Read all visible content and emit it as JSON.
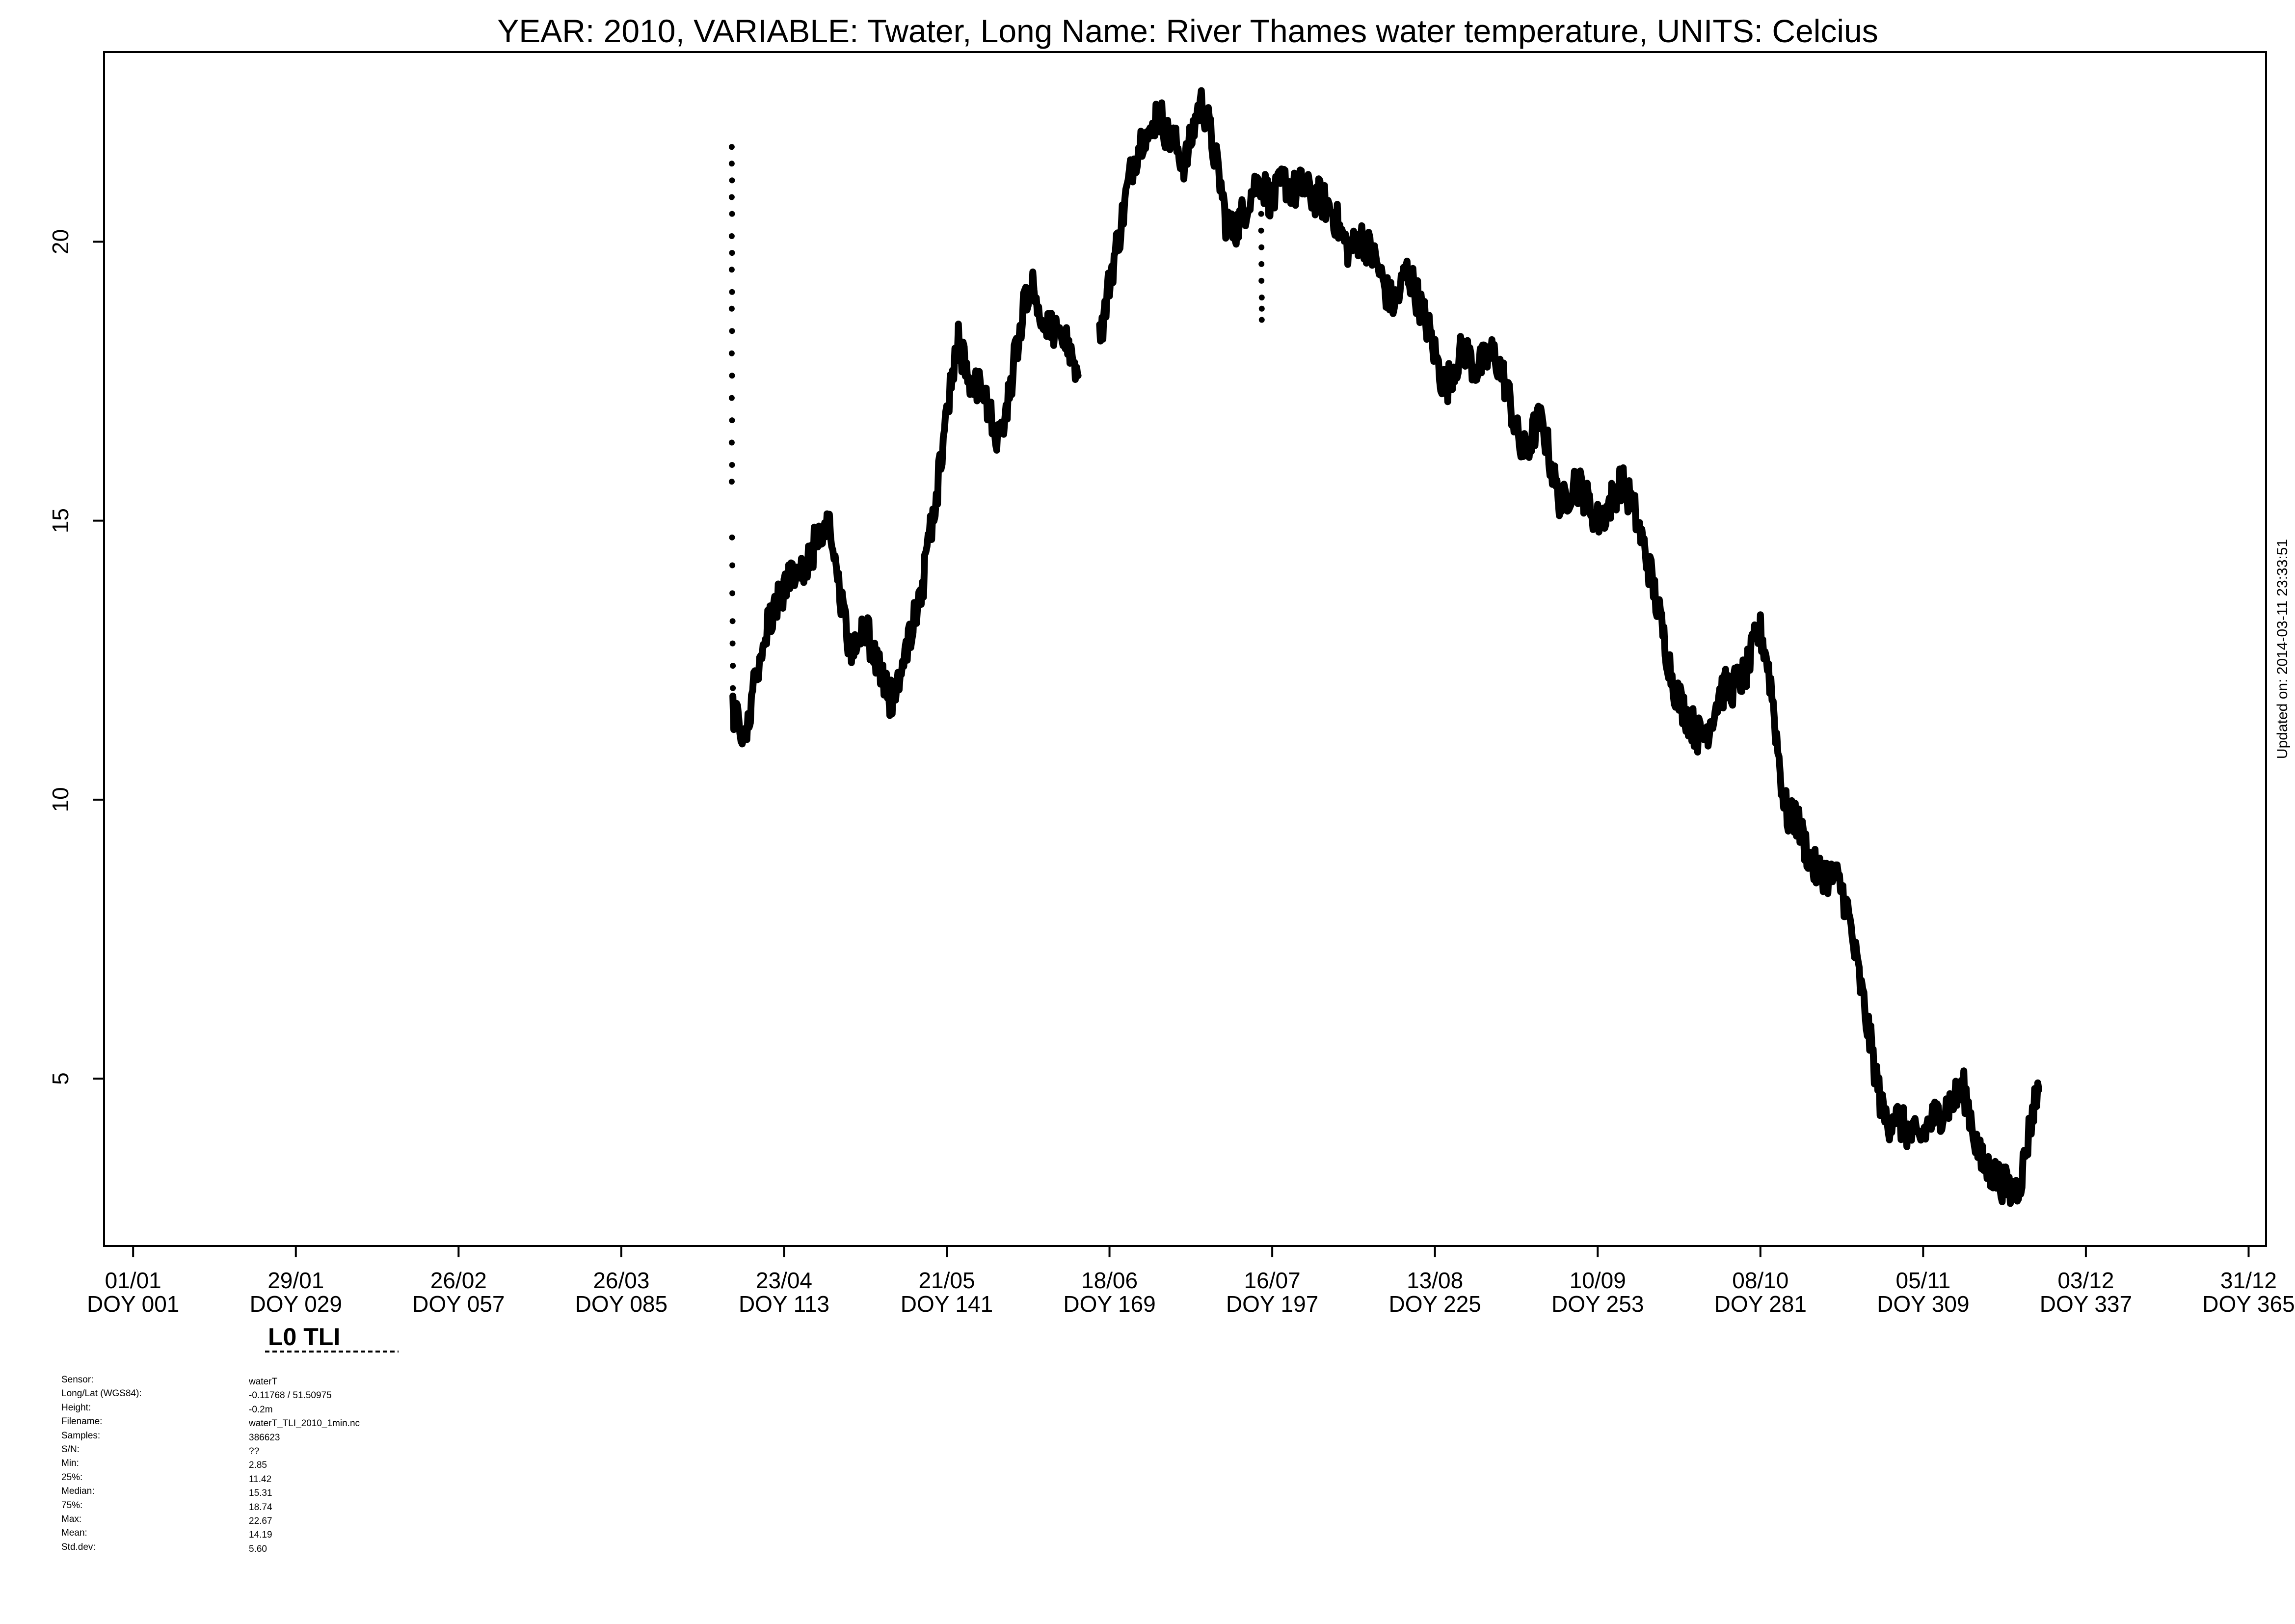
{
  "chart_data": {
    "type": "line",
    "title": "YEAR: 2010, VARIABLE: Twater, Long Name: River  Thames  water  temperature, UNITS: Celcius",
    "xlabel": "",
    "ylabel": "",
    "xlim": [
      -4,
      368
    ],
    "ylim": [
      2,
      23.4
    ],
    "x_ticks": [
      {
        "doy": 1,
        "date": "01/01",
        "label": "DOY 001"
      },
      {
        "doy": 29,
        "date": "29/01",
        "label": "DOY 029"
      },
      {
        "doy": 57,
        "date": "26/02",
        "label": "DOY 057"
      },
      {
        "doy": 85,
        "date": "26/03",
        "label": "DOY 085"
      },
      {
        "doy": 113,
        "date": "23/04",
        "label": "DOY 113"
      },
      {
        "doy": 141,
        "date": "21/05",
        "label": "DOY 141"
      },
      {
        "doy": 169,
        "date": "18/06",
        "label": "DOY 169"
      },
      {
        "doy": 197,
        "date": "16/07",
        "label": "DOY 197"
      },
      {
        "doy": 225,
        "date": "13/08",
        "label": "DOY 225"
      },
      {
        "doy": 253,
        "date": "10/09",
        "label": "DOY 253"
      },
      {
        "doy": 281,
        "date": "08/10",
        "label": "DOY 281"
      },
      {
        "doy": 309,
        "date": "05/11",
        "label": "DOY 309"
      },
      {
        "doy": 337,
        "date": "03/12",
        "label": "DOY 337"
      },
      {
        "doy": 365,
        "date": "31/12",
        "label": "DOY 365"
      }
    ],
    "y_ticks": [
      5,
      10,
      15,
      20
    ],
    "grid": false,
    "legend": "none",
    "color": "#000000",
    "series": [
      {
        "segments": [
          [
            [
              104.2,
              11.6
            ],
            [
              105,
              11.5
            ],
            [
              106,
              11.3
            ],
            [
              107,
              11.5
            ],
            [
              108,
              12.2
            ],
            [
              109,
              12.7
            ],
            [
              110,
              13.1
            ],
            [
              111,
              13.4
            ],
            [
              112,
              13.6
            ],
            [
              113,
              13.8
            ],
            [
              114,
              13.9
            ],
            [
              115,
              14.0
            ],
            [
              116,
              14.0
            ],
            [
              117,
              14.2
            ],
            [
              118,
              14.5
            ],
            [
              119,
              14.8
            ],
            [
              120,
              15.0
            ],
            [
              121,
              14.9
            ],
            [
              122,
              14.3
            ],
            [
              123,
              13.5
            ],
            [
              124,
              12.9
            ],
            [
              125,
              12.6
            ],
            [
              126,
              12.9
            ],
            [
              127,
              13.0
            ],
            [
              128,
              12.8
            ],
            [
              129,
              12.5
            ],
            [
              130,
              12.1
            ],
            [
              131,
              11.8
            ],
            [
              132,
              11.8
            ],
            [
              133,
              12.1
            ],
            [
              134,
              12.6
            ],
            [
              135,
              13.1
            ],
            [
              136,
              13.5
            ],
            [
              137,
              13.9
            ],
            [
              138,
              14.6
            ],
            [
              139,
              15.3
            ],
            [
              140,
              16.1
            ],
            [
              141,
              16.9
            ],
            [
              142,
              17.7
            ],
            [
              143,
              18.3
            ],
            [
              144,
              17.8
            ],
            [
              145,
              17.6
            ],
            [
              146,
              17.5
            ],
            [
              147,
              17.3
            ],
            [
              148,
              17.0
            ],
            [
              149,
              16.7
            ],
            [
              150,
              16.5
            ],
            [
              151,
              16.9
            ],
            [
              152,
              17.4
            ],
            [
              153,
              18.1
            ],
            [
              154,
              18.7
            ],
            [
              155,
              19.2
            ],
            [
              156,
              19.1
            ],
            [
              157,
              18.8
            ],
            [
              158,
              18.7
            ],
            [
              159,
              18.4
            ],
            [
              160,
              18.3
            ],
            [
              161,
              18.2
            ],
            [
              162,
              18.1
            ],
            [
              163,
              17.9
            ],
            [
              163.6,
              17.6
            ]
          ],
          [
            [
              167.3,
              18.4
            ],
            [
              168,
              18.6
            ],
            [
              169,
              19.3
            ],
            [
              170,
              19.8
            ],
            [
              171,
              20.3
            ],
            [
              172,
              20.9
            ],
            [
              173,
              21.4
            ],
            [
              174,
              21.7
            ],
            [
              175,
              22.0
            ],
            [
              176,
              21.8
            ],
            [
              177,
              22.3
            ],
            [
              178,
              22.2
            ],
            [
              179,
              21.9
            ],
            [
              180,
              21.8
            ],
            [
              181,
              21.6
            ],
            [
              182,
              21.4
            ],
            [
              183,
              21.8
            ],
            [
              184,
              22.3
            ],
            [
              185,
              22.5
            ],
            [
              186,
              22.1
            ],
            [
              187,
              21.6
            ],
            [
              188,
              21.1
            ],
            [
              189,
              20.4
            ],
            [
              190,
              20.2
            ],
            [
              191,
              20.3
            ],
            [
              192,
              20.5
            ],
            [
              193,
              20.8
            ],
            [
              194,
              21.0
            ],
            [
              195,
              21.1
            ],
            [
              196,
              20.9
            ],
            [
              197,
              20.7
            ],
            [
              198,
              20.9
            ],
            [
              199,
              21.1
            ],
            [
              200,
              21.0
            ],
            [
              201,
              20.9
            ],
            [
              202,
              21.0
            ],
            [
              203,
              20.9
            ],
            [
              204,
              20.8
            ],
            [
              205,
              20.8
            ],
            [
              206,
              20.7
            ],
            [
              207,
              20.6
            ],
            [
              208,
              20.4
            ],
            [
              209,
              20.1
            ],
            [
              210,
              19.9
            ],
            [
              211,
              19.9
            ],
            [
              212,
              20.1
            ],
            [
              213,
              20.0
            ],
            [
              214,
              19.8
            ],
            [
              215,
              19.6
            ],
            [
              216,
              19.3
            ],
            [
              217,
              19.0
            ],
            [
              218,
              18.9
            ],
            [
              219,
              19.1
            ],
            [
              220,
              19.5
            ],
            [
              221,
              19.3
            ],
            [
              222,
              19.0
            ],
            [
              223,
              18.7
            ],
            [
              224,
              18.4
            ],
            [
              225,
              18.0
            ],
            [
              226,
              17.6
            ],
            [
              227,
              17.4
            ],
            [
              228,
              17.7
            ],
            [
              229,
              17.9
            ],
            [
              230,
              18.1
            ],
            [
              231,
              17.9
            ],
            [
              232,
              17.7
            ],
            [
              233,
              17.8
            ],
            [
              234,
              17.9
            ],
            [
              235,
              18.0
            ],
            [
              236,
              17.8
            ],
            [
              237,
              17.5
            ],
            [
              238,
              17.1
            ],
            [
              239,
              16.6
            ],
            [
              240,
              16.2
            ],
            [
              241,
              16.3
            ],
            [
              242,
              16.6
            ],
            [
              243,
              16.8
            ],
            [
              244,
              16.5
            ],
            [
              245,
              16.0
            ],
            [
              246,
              15.5
            ],
            [
              247,
              15.3
            ],
            [
              248,
              15.5
            ],
            [
              249,
              15.7
            ],
            [
              250,
              15.6
            ],
            [
              251,
              15.4
            ],
            [
              252,
              15.2
            ],
            [
              253,
              15.0
            ],
            [
              254,
              15.1
            ],
            [
              255,
              15.3
            ],
            [
              256,
              15.5
            ],
            [
              257,
              15.7
            ],
            [
              258,
              15.5
            ],
            [
              259,
              15.3
            ],
            [
              260,
              14.9
            ],
            [
              261,
              14.5
            ],
            [
              262,
              14.1
            ],
            [
              263,
              13.6
            ],
            [
              264,
              13.1
            ],
            [
              265,
              12.6
            ],
            [
              266,
              12.1
            ],
            [
              267,
              11.8
            ],
            [
              268,
              11.6
            ],
            [
              269,
              11.4
            ],
            [
              270,
              11.2
            ],
            [
              271,
              11.1
            ],
            [
              272,
              11.3
            ],
            [
              273,
              11.6
            ],
            [
              274,
              11.9
            ],
            [
              275,
              12.0
            ],
            [
              276,
              12.0
            ],
            [
              277,
              12.1
            ],
            [
              278,
              12.2
            ],
            [
              279,
              12.4
            ],
            [
              280,
              12.8
            ],
            [
              281,
              13.0
            ],
            [
              282,
              12.6
            ],
            [
              283,
              11.9
            ],
            [
              284,
              10.9
            ],
            [
              285,
              10.0
            ],
            [
              286,
              9.6
            ],
            [
              287,
              9.7
            ],
            [
              288,
              9.4
            ],
            [
              289,
              9.1
            ],
            [
              290,
              8.8
            ],
            [
              291,
              8.7
            ],
            [
              292,
              8.7
            ],
            [
              293,
              8.6
            ],
            [
              294,
              8.6
            ],
            [
              295,
              8.4
            ],
            [
              296,
              8.0
            ],
            [
              297,
              7.4
            ],
            [
              298,
              6.8
            ],
            [
              299,
              6.2
            ],
            [
              300,
              5.6
            ],
            [
              301,
              5.0
            ],
            [
              302,
              4.4
            ],
            [
              303,
              4.2
            ],
            [
              304,
              4.4
            ],
            [
              305,
              4.2
            ],
            [
              306,
              4.1
            ],
            [
              307,
              4.0
            ],
            [
              308,
              3.9
            ],
            [
              309,
              4.0
            ],
            [
              310,
              4.2
            ],
            [
              311,
              4.3
            ],
            [
              312,
              4.4
            ],
            [
              313,
              4.5
            ],
            [
              314,
              4.6
            ],
            [
              315,
              4.7
            ],
            [
              316,
              4.8
            ],
            [
              317,
              4.4
            ],
            [
              318,
              3.9
            ],
            [
              319,
              3.5
            ],
            [
              320,
              3.4
            ],
            [
              321,
              3.3
            ],
            [
              322,
              3.2
            ],
            [
              323,
              3.1
            ],
            [
              324,
              3.0
            ],
            [
              325,
              3.0
            ],
            [
              326,
              3.3
            ],
            [
              327,
              3.9
            ],
            [
              328,
              4.5
            ],
            [
              328.9,
              4.8
            ]
          ]
        ],
        "scatter": [
          [
            104.0,
            21.7
          ],
          [
            104.0,
            21.4
          ],
          [
            104.05,
            21.1
          ],
          [
            104.0,
            20.8
          ],
          [
            104.05,
            20.5
          ],
          [
            104.0,
            20.1
          ],
          [
            104.05,
            19.8
          ],
          [
            104.0,
            19.5
          ],
          [
            104.05,
            19.1
          ],
          [
            104.0,
            18.8
          ],
          [
            104.05,
            18.4
          ],
          [
            104.0,
            18.0
          ],
          [
            104.05,
            17.6
          ],
          [
            104.0,
            17.2
          ],
          [
            104.05,
            16.8
          ],
          [
            104.0,
            16.4
          ],
          [
            104.05,
            16.0
          ],
          [
            104.0,
            15.7
          ],
          [
            104.05,
            14.7
          ],
          [
            104.1,
            14.2
          ],
          [
            104.1,
            13.7
          ],
          [
            104.15,
            13.2
          ],
          [
            104.15,
            12.8
          ],
          [
            104.2,
            12.4
          ],
          [
            104.2,
            12.0
          ],
          [
            195.1,
            20.8
          ],
          [
            195.1,
            20.5
          ],
          [
            195.1,
            20.2
          ],
          [
            195.15,
            19.9
          ],
          [
            195.15,
            19.6
          ],
          [
            195.15,
            19.3
          ],
          [
            195.2,
            19.0
          ],
          [
            195.2,
            18.8
          ],
          [
            195.2,
            18.6
          ]
        ],
        "band_seed": 2010
      }
    ],
    "updated_note": "Updated on: 2014-03-11 23:33:51",
    "panel_label": "L0 TLI"
  },
  "metadata": {
    "labels": [
      "Sensor:",
      "Long/Lat (WGS84):",
      "Height:",
      "Filename:",
      "Samples:",
      "S/N:",
      "Min:",
      "25%:",
      "Median:",
      "75%:",
      "Max:",
      "Mean:",
      "Std.dev:"
    ],
    "values": [
      "waterT",
      "-0.11768 / 51.50975",
      "-0.2m",
      "waterT_TLI_2010_1min.nc",
      "386623",
      "??",
      "2.85",
      "11.42",
      "15.31",
      "18.74",
      "22.67",
      "14.19",
      "5.60"
    ]
  }
}
